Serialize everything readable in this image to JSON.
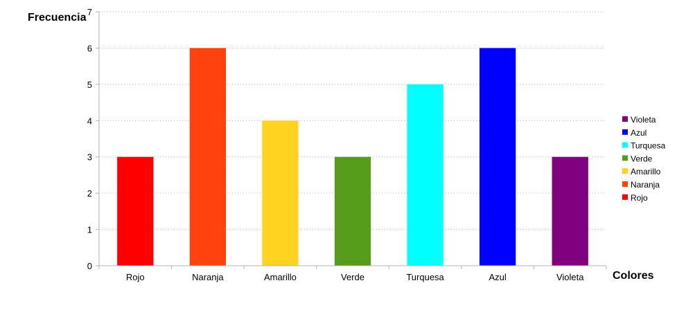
{
  "chart_data": {
    "type": "bar",
    "title": "",
    "xlabel": "Colores",
    "ylabel": "Frecuencia",
    "categories": [
      "Rojo",
      "Naranja",
      "Amarillo",
      "Verde",
      "Turquesa",
      "Azul",
      "Violeta"
    ],
    "values": [
      3,
      6,
      4,
      3,
      5,
      6,
      3
    ],
    "bar_colors": [
      "#ff0000",
      "#ff420e",
      "#ffd320",
      "#579d1c",
      "#00ffff",
      "#0000ff",
      "#800080"
    ],
    "ylim": [
      0,
      7
    ],
    "yticks": [
      "0",
      "1",
      "2",
      "3",
      "4",
      "5",
      "6",
      "7"
    ],
    "grid": true,
    "legend": {
      "placement": "right",
      "entries": [
        "Violeta",
        "Azul",
        "Turquesa",
        "Verde",
        "Amarillo",
        "Naranja",
        "Rojo"
      ],
      "colors": [
        "#800080",
        "#0000ff",
        "#00ffff",
        "#579d1c",
        "#ffd320",
        "#ff420e",
        "#ff0000"
      ]
    }
  }
}
